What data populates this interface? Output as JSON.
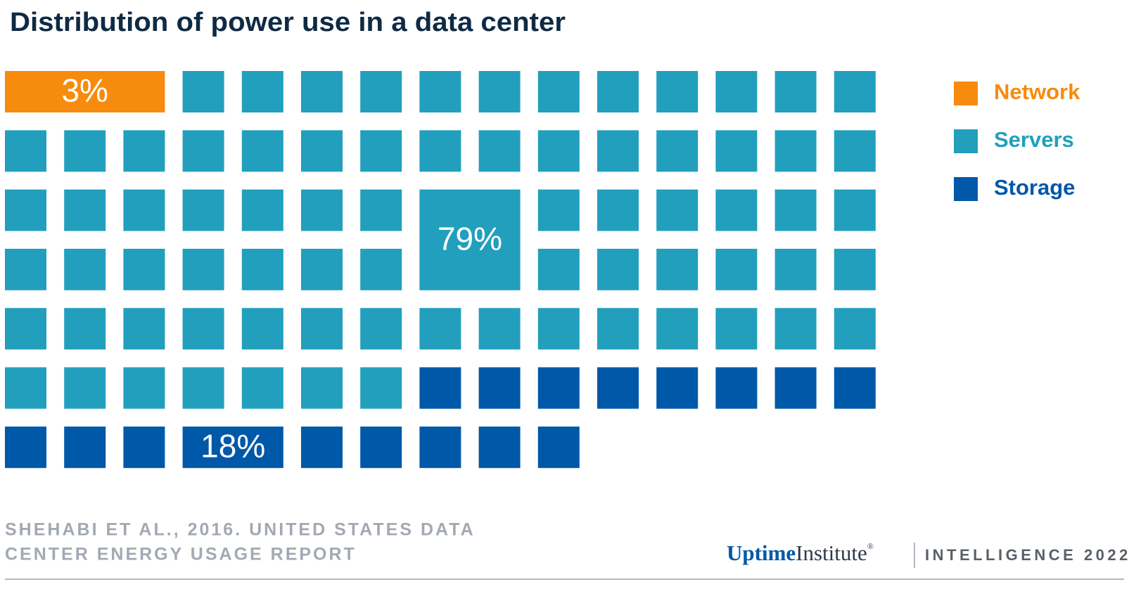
{
  "chart_data": {
    "type": "waffle",
    "title": "Distribution of power use in a data center",
    "series": [
      {
        "name": "Network",
        "color": "#f68b0d",
        "value": 3,
        "value_label": "3%"
      },
      {
        "name": "Servers",
        "color": "#229fbd",
        "value": 79,
        "value_label": "79%"
      },
      {
        "name": "Storage",
        "color": "#0058a8",
        "value": 18,
        "value_label": "18%"
      }
    ],
    "source": [
      "SHEHABI ET AL., 2016. UNITED STATES DATA",
      "CENTER ENERGY USAGE REPORT"
    ],
    "logo": [
      "Uptime",
      "Institute",
      "®"
    ],
    "tagline": "INTELLIGENCE 2022"
  }
}
